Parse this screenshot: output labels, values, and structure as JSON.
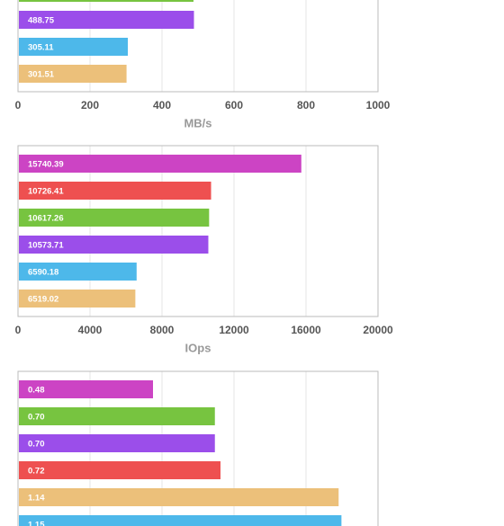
{
  "chart_data": [
    {
      "type": "bar",
      "orientation": "horizontal",
      "x_label": "MB/s",
      "values": [
        487.5,
        488.75,
        305.11,
        301.51
      ],
      "colors": [
        "#77c440",
        "#9b4eea",
        "#4db8ea",
        "#ecc07a"
      ],
      "xlim": [
        0,
        1000
      ],
      "xticks": [
        0,
        200,
        400,
        600,
        800,
        1000
      ],
      "grid": true
    },
    {
      "type": "bar",
      "orientation": "horizontal",
      "x_label": "IOps",
      "values": [
        15740.39,
        10726.41,
        10617.26,
        10573.71,
        6590.18,
        6519.02
      ],
      "colors": [
        "#cc44c4",
        "#ee5050",
        "#77c440",
        "#9b4eea",
        "#4db8ea",
        "#ecc07a"
      ],
      "xlim": [
        0,
        20000
      ],
      "xticks": [
        0,
        4000,
        8000,
        12000,
        16000,
        20000
      ],
      "grid": true
    },
    {
      "type": "bar",
      "orientation": "horizontal",
      "values": [
        0.48,
        0.7,
        0.7,
        0.72,
        1.14,
        1.15
      ],
      "value_labels": [
        "0.48",
        "0.70",
        "0.70",
        "0.72",
        "1.14",
        "1.15"
      ],
      "colors": [
        "#cc44c4",
        "#77c440",
        "#9b4eea",
        "#ee5050",
        "#ecc07a",
        "#4db8ea"
      ],
      "xlim": [
        0,
        1.28
      ],
      "grid": true
    }
  ]
}
